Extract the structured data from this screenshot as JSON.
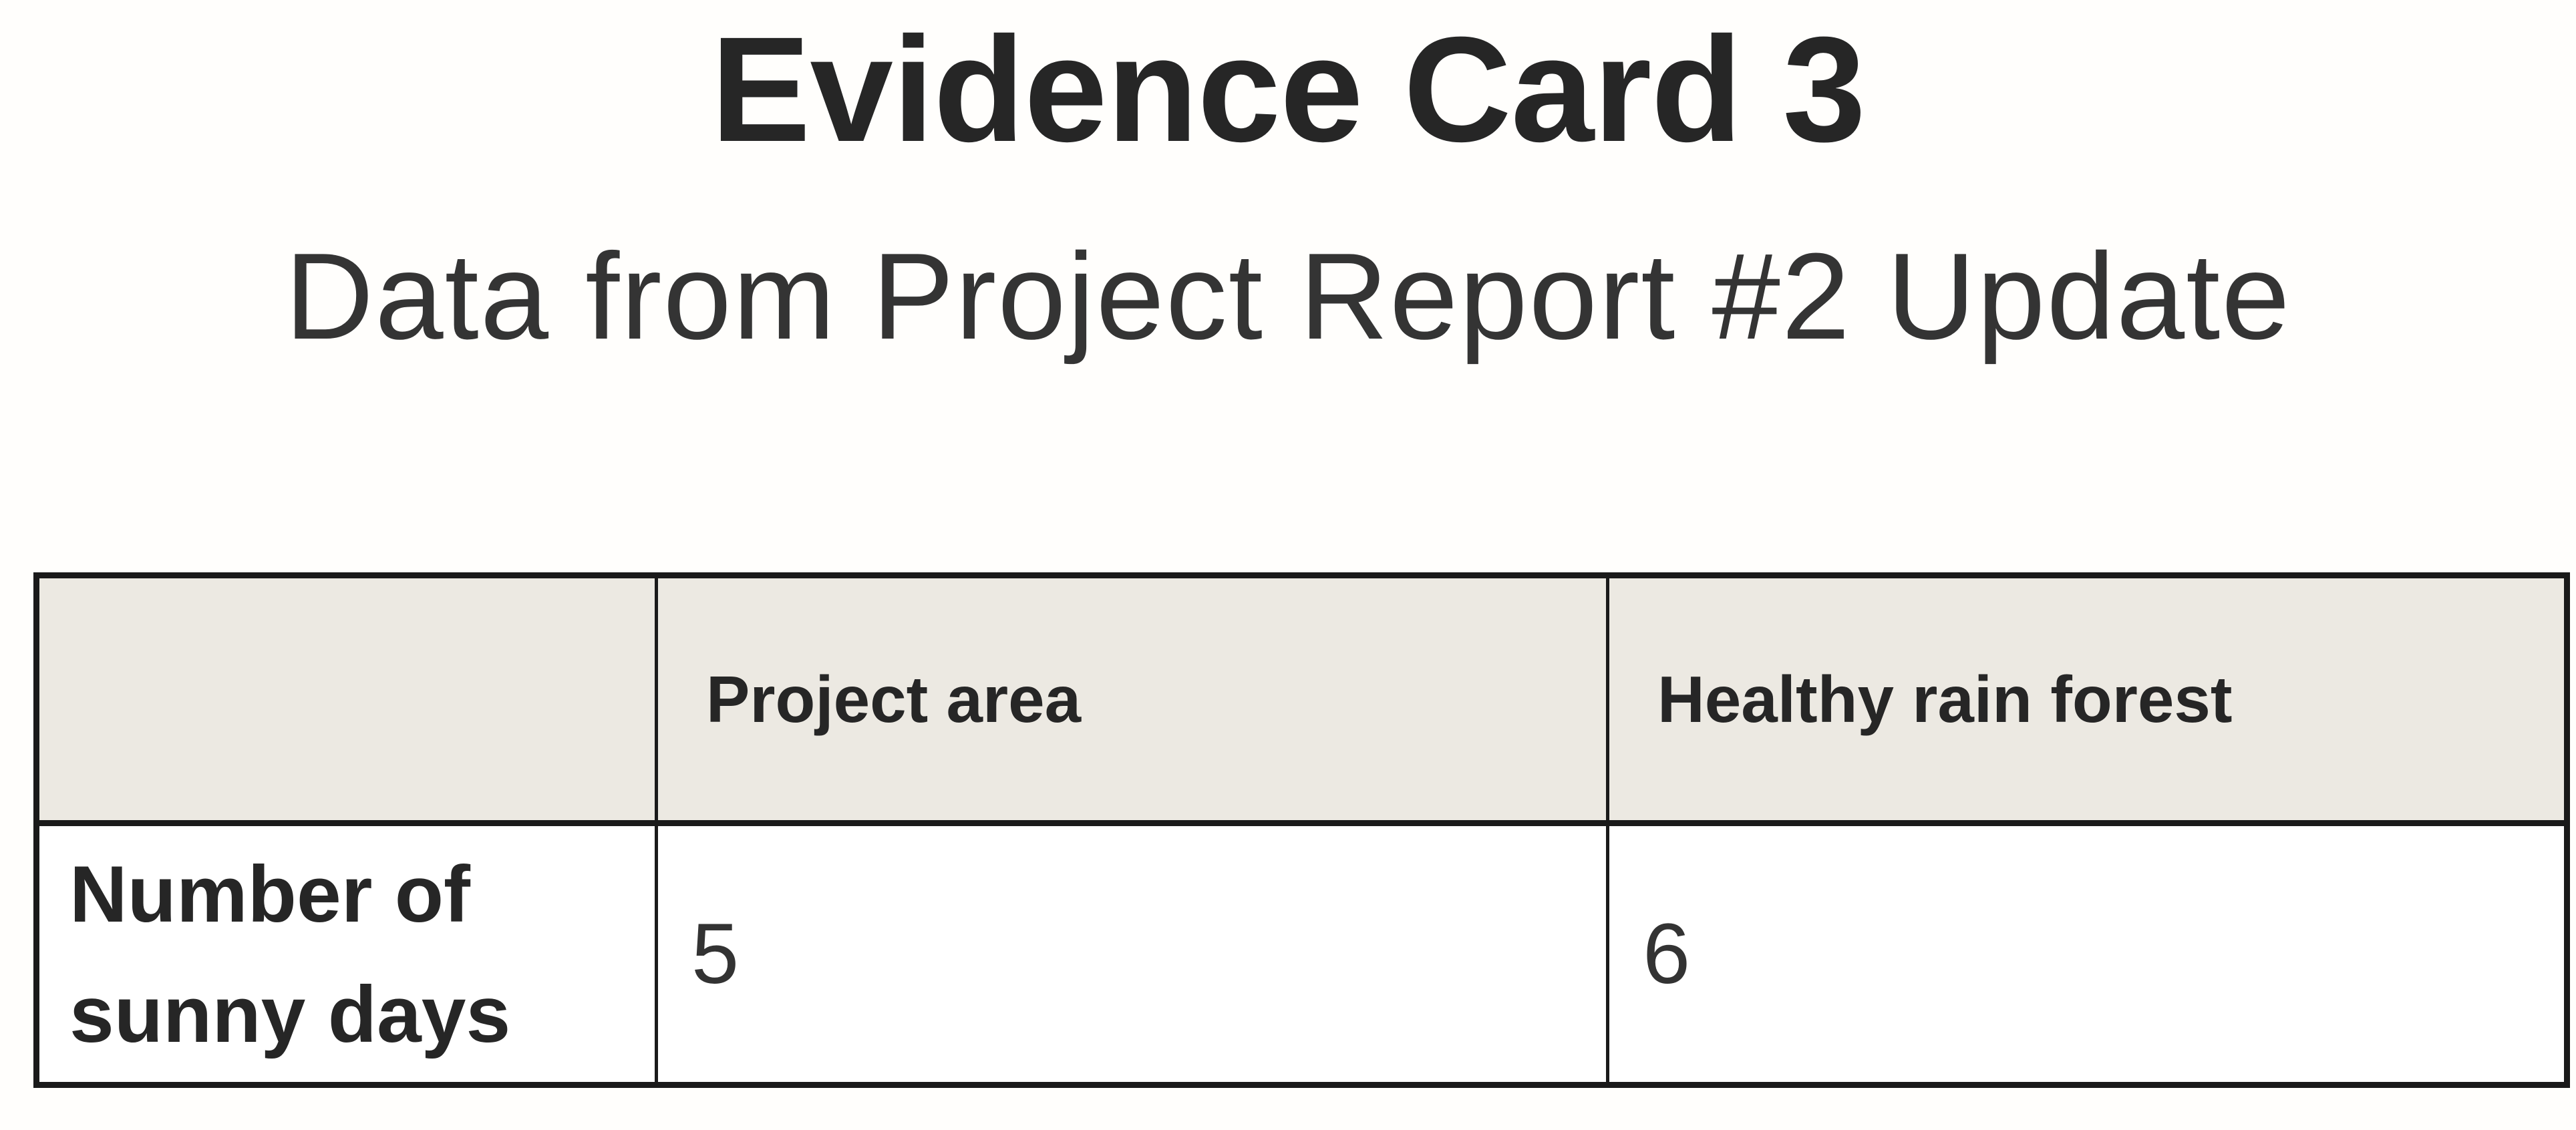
{
  "card": {
    "title": "Evidence Card 3",
    "subtitle": "Data from Project Report #2 Update"
  },
  "table": {
    "corner_label": "",
    "columns": [
      "Project area",
      "Healthy rain forest"
    ],
    "rows": [
      {
        "label": "Number of sunny days",
        "values": [
          "5",
          "6"
        ]
      }
    ]
  },
  "colors": {
    "page_bg": "#fffefc",
    "header_bg": "#ece9e2",
    "border": "#1a1a1a",
    "text": "#262626"
  }
}
